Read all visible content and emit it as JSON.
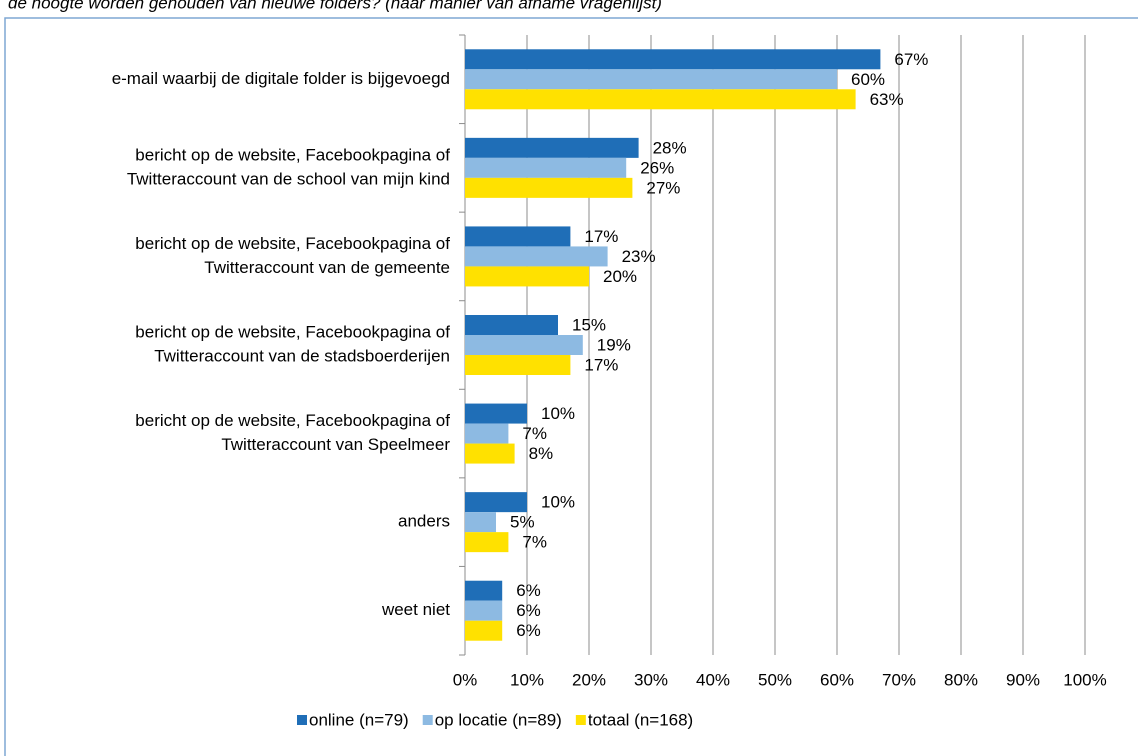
{
  "chart_data": {
    "type": "hbar",
    "subtitle": "de hoogte worden gehouden van nieuwe folders? (naar manier van afname vragenlijst)",
    "categories": [
      [
        "e-mail waarbij de digitale folder is bijgevoegd"
      ],
      [
        "bericht op de website, Facebookpagina of",
        "Twitteraccount van de school van mijn kind"
      ],
      [
        "bericht op de website, Facebookpagina of",
        "Twitteraccount van de gemeente"
      ],
      [
        "bericht op de website, Facebookpagina of",
        "Twitteraccount van de stadsboerderijen"
      ],
      [
        "bericht op de website, Facebookpagina of",
        "Twitteraccount van Speelmeer"
      ],
      [
        "anders"
      ],
      [
        "weet niet"
      ]
    ],
    "series": [
      {
        "name": "online (n=79)",
        "color": "#1F6EB7",
        "values": [
          67,
          28,
          17,
          15,
          10,
          10,
          6
        ],
        "value_labels": [
          "67%",
          "28%",
          "17%",
          "15%",
          "10%",
          "10%",
          "6%"
        ]
      },
      {
        "name": "op locatie (n=89)",
        "color": "#8DBAE2",
        "values": [
          60,
          26,
          23,
          19,
          7,
          5,
          6
        ],
        "value_labels": [
          "60%",
          "26%",
          "23%",
          "19%",
          "7%",
          "5%",
          "6%"
        ]
      },
      {
        "name": "totaal (n=168)",
        "color": "#FFE100",
        "values": [
          63,
          27,
          20,
          17,
          8,
          7,
          6
        ],
        "value_labels": [
          "63%",
          "27%",
          "20%",
          "17%",
          "8%",
          "7%",
          "6%"
        ]
      }
    ],
    "xlim": [
      0,
      100
    ],
    "xticks": [
      {
        "value": 0,
        "label": "0%"
      },
      {
        "value": 10,
        "label": "10%"
      },
      {
        "value": 20,
        "label": "20%"
      },
      {
        "value": 30,
        "label": "30%"
      },
      {
        "value": 40,
        "label": "40%"
      },
      {
        "value": 50,
        "label": "50%"
      },
      {
        "value": 60,
        "label": "60%"
      },
      {
        "value": 70,
        "label": "70%"
      },
      {
        "value": 80,
        "label": "80%"
      },
      {
        "value": 90,
        "label": "90%"
      },
      {
        "value": 100,
        "label": "100%"
      }
    ],
    "grid": true,
    "legend": "bottom"
  }
}
